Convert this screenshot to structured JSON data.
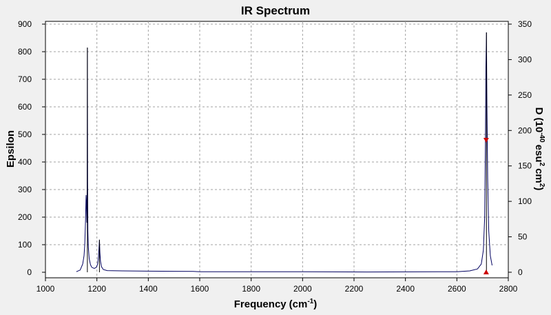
{
  "chart_data": {
    "type": "line",
    "title": "IR Spectrum",
    "xlabel": "Frequency",
    "xlabel_unit": "(cm",
    "xlabel_unit_exp": "-1",
    "xlabel_unit_close": ")",
    "ylabel": "Epsilon",
    "y2label": "D",
    "y2label_unit": "(10",
    "y2label_unit_exp1": "-40",
    "y2label_unit_mid": "esu",
    "y2label_unit_exp2": "2",
    "y2label_unit_cm": "cm",
    "y2label_unit_exp3": "2",
    "y2label_unit_close": ")",
    "xlim": [
      1000,
      2800
    ],
    "ylim": [
      -20,
      910
    ],
    "y2lim": [
      -7.8,
      353.9
    ],
    "x_ticks": [
      "1000",
      "1200",
      "1400",
      "1600",
      "1800",
      "2000",
      "2200",
      "2400",
      "2600",
      "2800"
    ],
    "y_ticks": [
      "0",
      "100",
      "200",
      "300",
      "400",
      "500",
      "600",
      "700",
      "800",
      "900"
    ],
    "y2_ticks": [
      "0",
      "50",
      "100",
      "150",
      "200",
      "250",
      "300",
      "350"
    ],
    "grid": true,
    "line_color": "#000060",
    "marker_color": "#cc0000",
    "spectrum": [
      [
        1120,
        2
      ],
      [
        1135,
        8
      ],
      [
        1145,
        30
      ],
      [
        1150,
        60
      ],
      [
        1153,
        100
      ],
      [
        1156,
        190
      ],
      [
        1158,
        280
      ],
      [
        1159.5,
        250
      ],
      [
        1161,
        180
      ],
      [
        1162,
        300
      ],
      [
        1163,
        815
      ],
      [
        1164,
        330
      ],
      [
        1165,
        150
      ],
      [
        1167,
        90
      ],
      [
        1170,
        50
      ],
      [
        1175,
        28
      ],
      [
        1180,
        18
      ],
      [
        1190,
        14
      ],
      [
        1198,
        18
      ],
      [
        1203,
        30
      ],
      [
        1206,
        55
      ],
      [
        1208,
        85
      ],
      [
        1210,
        118
      ],
      [
        1212,
        70
      ],
      [
        1214,
        40
      ],
      [
        1218,
        20
      ],
      [
        1225,
        10
      ],
      [
        1240,
        6
      ],
      [
        1300,
        5
      ],
      [
        1400,
        4
      ],
      [
        1575,
        3
      ],
      [
        1600,
        2
      ],
      [
        2000,
        2
      ],
      [
        2250,
        1
      ],
      [
        2600,
        2
      ],
      [
        2650,
        5
      ],
      [
        2680,
        12
      ],
      [
        2695,
        30
      ],
      [
        2703,
        80
      ],
      [
        2708,
        200
      ],
      [
        2711,
        470
      ],
      [
        2713,
        740
      ],
      [
        2715,
        870
      ],
      [
        2717,
        600
      ],
      [
        2720,
        340
      ],
      [
        2724,
        150
      ],
      [
        2730,
        60
      ],
      [
        2737,
        25
      ]
    ],
    "sticks": [
      {
        "x": 1163,
        "y": 815
      },
      {
        "x": 1210,
        "y": 118
      },
      {
        "x": 2715,
        "y": 870
      }
    ],
    "markers": [
      {
        "x": 2714,
        "y": 480,
        "shape": "down-triangle"
      },
      {
        "x": 2714,
        "y": 0,
        "shape": "up-triangle"
      }
    ]
  }
}
